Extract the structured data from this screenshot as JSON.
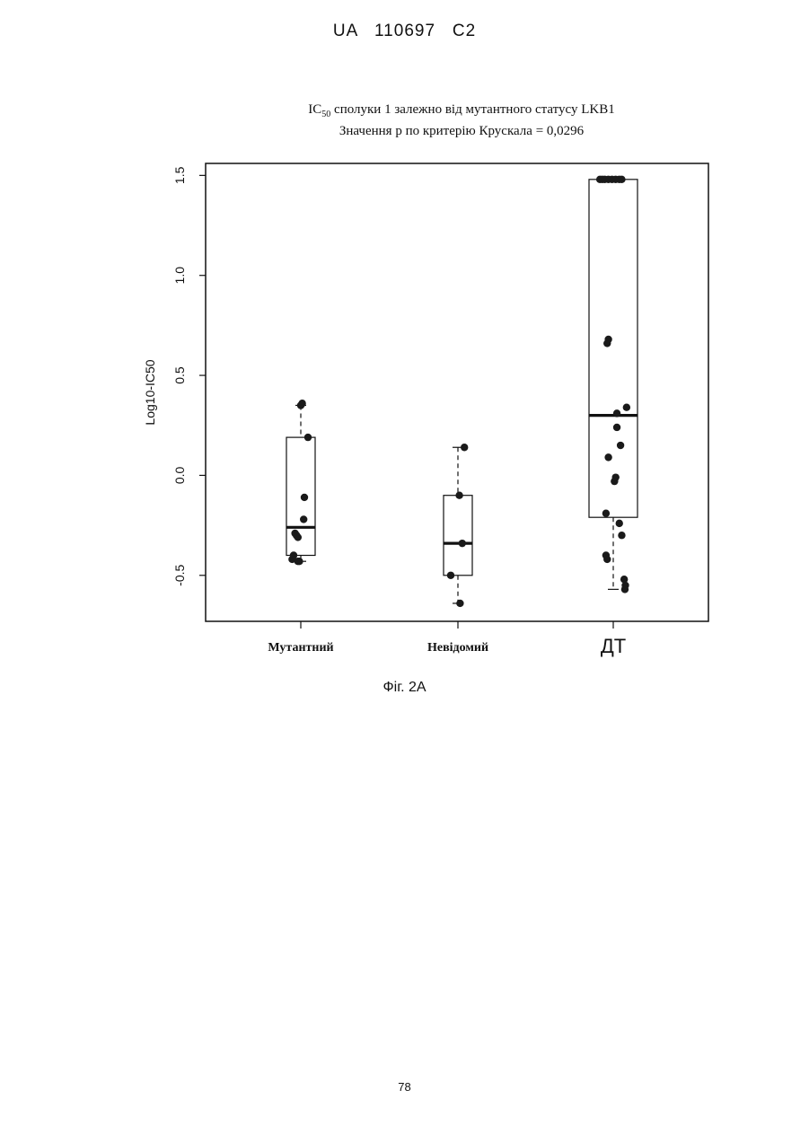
{
  "page": {
    "header": "UA   110697   C2",
    "caption": "Фіг. 2А",
    "page_number": "78"
  },
  "chart_data": {
    "type": "box",
    "title_line1_prefix": "IC",
    "title_line1_sub": "50",
    "title_line1_rest": " сполуки 1 залежно від мутантного статусу LKB1",
    "title_line2": "Значення р по критерію Крускала = 0,0296",
    "ylabel": "Log10-IC50",
    "ylim": [
      -0.73,
      1.56
    ],
    "yticks": [
      -0.5,
      0.0,
      0.5,
      1.0,
      1.5
    ],
    "ytick_labels": [
      "-0.5",
      "0.0",
      "0.5",
      "1.0",
      "1.5"
    ],
    "grid": false,
    "colors": {
      "ink": "#111111",
      "points": "#1a1a1a"
    },
    "categories": [
      "Мутантний",
      "Невідомий",
      "ДТ"
    ],
    "boxes": [
      {
        "name": "Мутантний",
        "whisker_low": -0.43,
        "q1": -0.4,
        "median": -0.26,
        "q3": 0.19,
        "whisker_high": 0.35,
        "points": [
          0.35,
          0.36,
          0.19,
          -0.11,
          -0.22,
          -0.29,
          -0.3,
          -0.31,
          -0.4,
          -0.42,
          -0.43,
          -0.43
        ],
        "jitter": [
          0.0,
          0.1,
          0.5,
          0.25,
          0.2,
          -0.4,
          -0.3,
          -0.2,
          -0.5,
          -0.6,
          -0.1,
          -0.2
        ]
      },
      {
        "name": "Невідомий",
        "whisker_low": -0.64,
        "q1": -0.5,
        "median": -0.34,
        "q3": -0.1,
        "whisker_high": 0.14,
        "points": [
          0.14,
          -0.1,
          -0.34,
          -0.5,
          -0.64
        ],
        "jitter": [
          0.45,
          0.1,
          0.3,
          -0.5,
          0.15
        ]
      },
      {
        "name": "ДТ",
        "whisker_low": -0.57,
        "q1": -0.21,
        "median": 0.3,
        "q3": 1.48,
        "whisker_high": 1.48,
        "points": [
          1.48,
          1.48,
          1.48,
          1.48,
          1.48,
          1.48,
          1.48,
          1.48,
          0.68,
          0.66,
          0.34,
          0.31,
          0.24,
          0.15,
          0.09,
          -0.01,
          -0.03,
          -0.19,
          -0.24,
          -0.3,
          -0.4,
          -0.42,
          -0.52,
          -0.55,
          -0.57
        ],
        "jitter": [
          -0.55,
          -0.45,
          -0.35,
          -0.2,
          -0.05,
          0.1,
          0.25,
          0.35,
          -0.2,
          -0.25,
          0.55,
          0.15,
          0.15,
          0.3,
          -0.2,
          0.1,
          0.05,
          -0.3,
          0.25,
          0.35,
          -0.3,
          -0.25,
          0.45,
          0.5,
          0.48
        ]
      }
    ]
  }
}
